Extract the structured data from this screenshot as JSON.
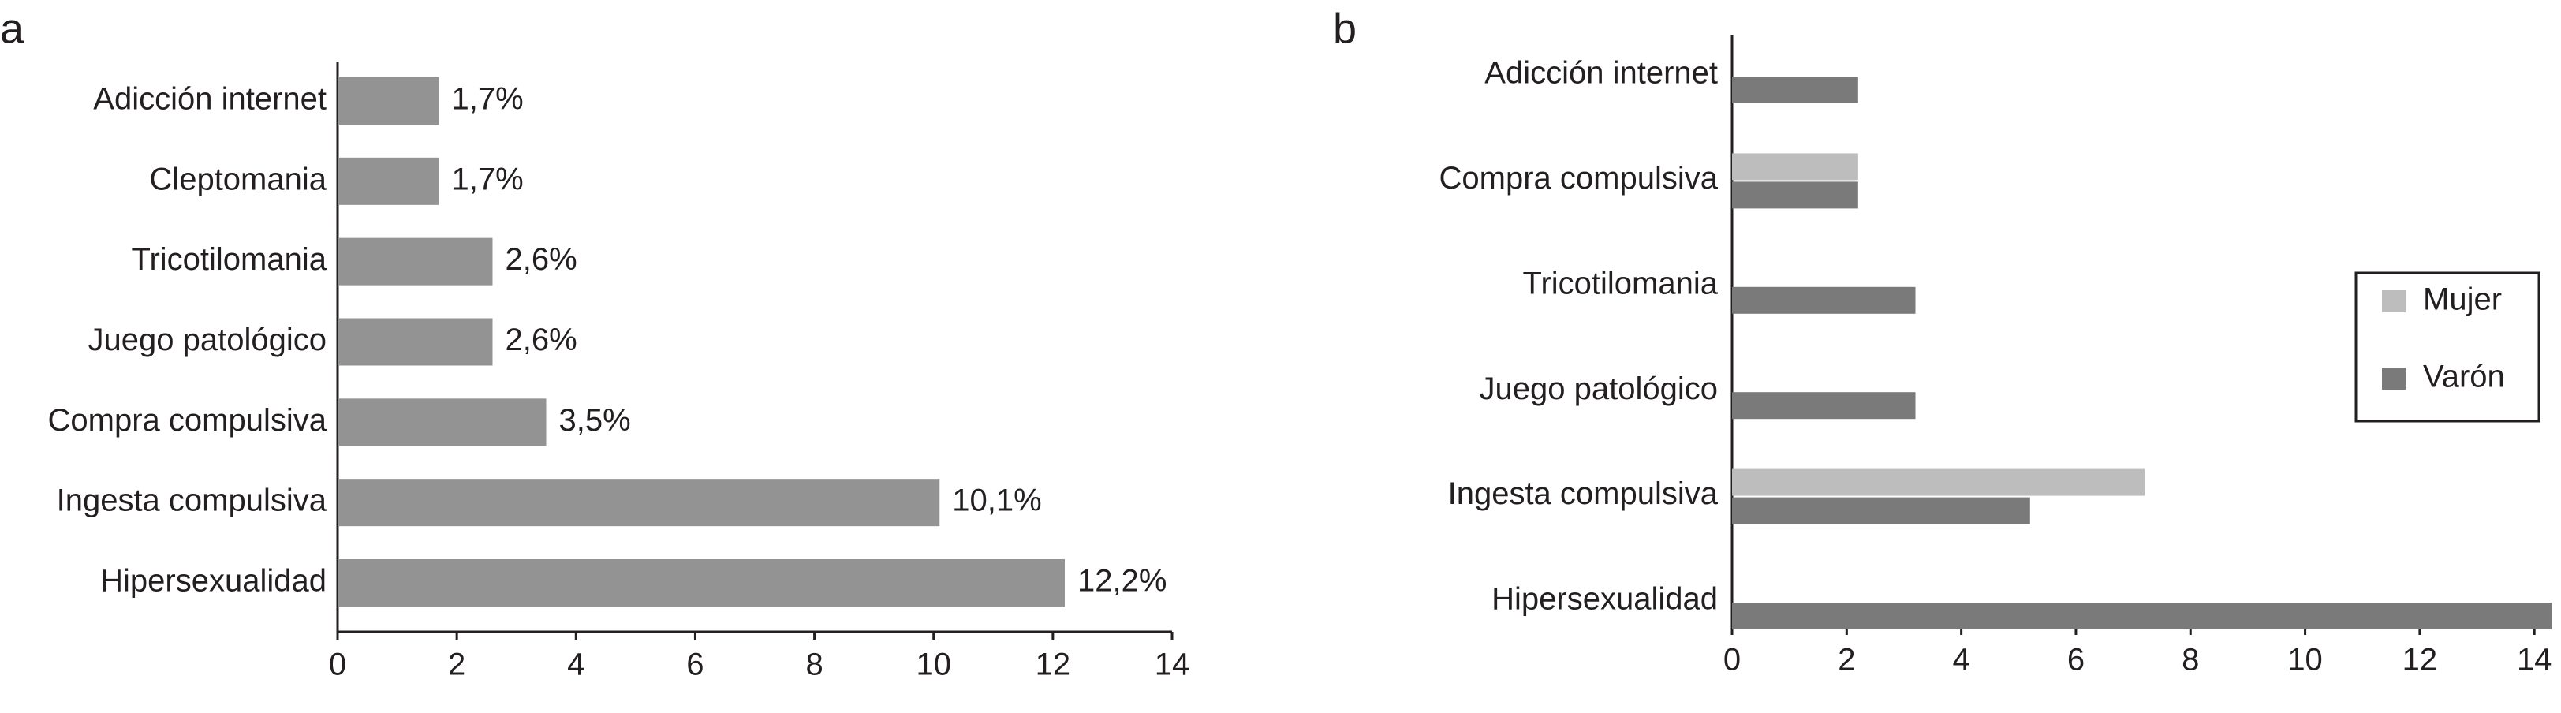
{
  "chart_data": [
    {
      "type": "bar",
      "panel": "a",
      "orientation": "horizontal",
      "categories": [
        "Adicción internet",
        "Cleptomania",
        "Tricotilomania",
        "Juego patológico",
        "Compra compulsiva",
        "Ingesta compulsiva",
        "Hipersexualidad"
      ],
      "values": [
        1.7,
        1.7,
        2.6,
        2.6,
        3.5,
        10.1,
        12.2
      ],
      "value_labels": [
        "1,7%",
        "1,7%",
        "2,6%",
        "2,6%",
        "3,5%",
        "10,1%",
        "12,2%"
      ],
      "color": "#939393",
      "xlim": [
        0,
        14
      ],
      "xticks": [
        0,
        2,
        4,
        6,
        8,
        10,
        12,
        14
      ]
    },
    {
      "type": "grouped-bar",
      "panel": "b",
      "orientation": "horizontal",
      "categories": [
        "Adicción internet",
        "Compra compulsiva",
        "Tricotilomania",
        "Juego patológico",
        "Ingesta compulsiva",
        "Hipersexualidad"
      ],
      "series": [
        {
          "name": "Mujer",
          "color": "#bdbdbd",
          "values": [
            0,
            2.2,
            0,
            0,
            7.2,
            0
          ]
        },
        {
          "name": "Varón",
          "color": "#7a7a7a",
          "values": [
            2.2,
            2.2,
            3.2,
            3.2,
            5.2,
            14.3
          ]
        }
      ],
      "xlim": [
        0,
        14.3
      ],
      "xticks": [
        0,
        2,
        4,
        6,
        8,
        10,
        12,
        14
      ],
      "legend": "right"
    }
  ]
}
